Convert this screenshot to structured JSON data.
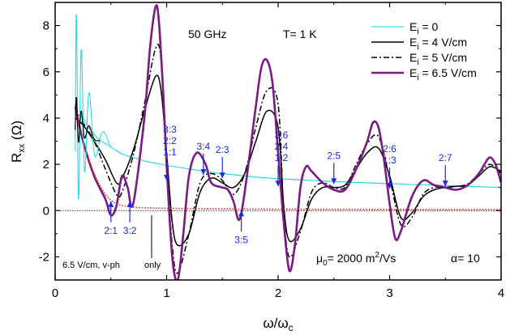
{
  "chart_data": {
    "type": "line",
    "xlabel": "ω/ω",
    "xlabel_sub": "c",
    "ylabel": "R",
    "ylabel_sub": "xx",
    "ylabel_unit": " (Ω)",
    "xlim": [
      0,
      4
    ],
    "ylim": [
      -3,
      9
    ],
    "xticks": [
      0,
      1,
      2,
      3,
      4
    ],
    "xtick_labels": [
      "0",
      "1",
      "2",
      "3",
      "4"
    ],
    "yticks": [
      -2,
      0,
      2,
      4,
      6,
      8
    ],
    "ytick_labels": [
      "-2",
      "0",
      "2",
      "4",
      "6",
      "8"
    ],
    "grid": false,
    "legend_position": "top-right",
    "annotations": {
      "freq": "50 GHz",
      "temp": "T= 1 K",
      "mu_prefix": "μ",
      "mu_sub": "0",
      "mu_value": "= 2000 m",
      "mu_sup": "2",
      "mu_unit": "/Vs",
      "alpha": "α= 10",
      "vph_note": "6.5 V/cm, v-ph",
      "only_note": "only"
    },
    "arrows": [
      {
        "label_lines": [
          "3:3",
          "2:2",
          "1:1"
        ],
        "x": 1.0,
        "y": 1.3
      },
      {
        "label_lines": [
          "3:4"
        ],
        "x": 1.33,
        "y": 1.55
      },
      {
        "label_lines": [
          "2:3"
        ],
        "x": 1.5,
        "y": 1.4
      },
      {
        "label_lines": [
          "3:6",
          "2:4",
          "1:2"
        ],
        "x": 2.0,
        "y": 1.05
      },
      {
        "label_lines": [
          "2:5"
        ],
        "x": 2.5,
        "y": 1.15
      },
      {
        "label_lines": [
          "2:6",
          "1:3"
        ],
        "x": 3.0,
        "y": 0.95
      },
      {
        "label_lines": [
          "2:7"
        ],
        "x": 3.5,
        "y": 1.05
      },
      {
        "label_lines": [
          "2:1"
        ],
        "x": 0.5,
        "y": 0.4
      },
      {
        "label_lines": [
          "3:2"
        ],
        "x": 0.67,
        "y": 0.4
      },
      {
        "label_lines": [
          "3:5"
        ],
        "x": 1.67,
        "y": 0.0
      }
    ],
    "series": [
      {
        "name": "E",
        "name_sub": "i",
        "name_rest": " = 0",
        "color": "#1ad8e0",
        "dash": "solid",
        "width": 1.1,
        "x": [
          0.18,
          0.25,
          0.3,
          0.35,
          0.4,
          0.5,
          0.6,
          0.7,
          0.8,
          0.9,
          1.0,
          1.2,
          1.4,
          1.6,
          1.8,
          2.0,
          2.4,
          2.8,
          3.2,
          3.6,
          4.0
        ],
        "y": [
          4.2,
          4.0,
          3.6,
          3.3,
          3.05,
          2.75,
          2.45,
          2.3,
          2.15,
          2.05,
          1.95,
          1.8,
          1.65,
          1.55,
          1.45,
          1.38,
          1.28,
          1.2,
          1.13,
          1.07,
          1.0
        ]
      },
      {
        "name": "E",
        "name_sub": "i",
        "name_rest": " = 4 V/cm",
        "color": "#000000",
        "dash": "solid",
        "width": 1.5,
        "x": [
          0.18,
          0.25,
          0.35,
          0.45,
          0.55,
          0.6,
          0.7,
          0.8,
          0.9,
          0.95,
          1.0,
          1.05,
          1.1,
          1.2,
          1.3,
          1.4,
          1.5,
          1.6,
          1.7,
          1.8,
          1.9,
          2.0,
          2.05,
          2.1,
          2.2,
          2.3,
          2.4,
          2.5,
          2.6,
          2.7,
          2.8,
          2.9,
          3.0,
          3.1,
          3.2,
          3.3,
          3.4,
          3.5,
          3.6,
          3.7,
          3.8,
          3.9,
          4.0
        ],
        "y": [
          4.0,
          3.7,
          3.0,
          2.2,
          1.2,
          1.4,
          2.6,
          4.3,
          5.8,
          5.2,
          2.5,
          -0.5,
          -1.5,
          -1.0,
          0.8,
          1.4,
          1.2,
          1.0,
          1.6,
          3.0,
          4.3,
          3.6,
          0.2,
          -1.3,
          -0.8,
          0.5,
          1.0,
          1.0,
          1.1,
          1.8,
          2.5,
          2.7,
          1.5,
          -0.3,
          -0.1,
          0.6,
          0.9,
          1.0,
          1.05,
          1.1,
          1.5,
          1.9,
          1.7
        ]
      },
      {
        "name": "E",
        "name_sub": "i",
        "name_rest": " = 5 V/cm",
        "color": "#000000",
        "dash": "dashdot",
        "width": 1.5,
        "x": [
          0.18,
          0.25,
          0.35,
          0.45,
          0.55,
          0.6,
          0.7,
          0.8,
          0.9,
          0.95,
          1.0,
          1.05,
          1.1,
          1.2,
          1.3,
          1.4,
          1.5,
          1.6,
          1.7,
          1.8,
          1.9,
          2.0,
          2.05,
          2.1,
          2.2,
          2.3,
          2.4,
          2.5,
          2.6,
          2.7,
          2.8,
          2.9,
          3.0,
          3.1,
          3.2,
          3.3,
          3.4,
          3.5,
          3.6,
          3.7,
          3.8,
          3.9,
          4.0
        ],
        "y": [
          4.3,
          3.8,
          3.0,
          1.8,
          0.7,
          0.8,
          2.4,
          4.6,
          7.0,
          6.5,
          2.2,
          -1.5,
          -2.7,
          -1.0,
          1.2,
          1.6,
          1.3,
          0.7,
          1.6,
          3.6,
          5.2,
          4.6,
          0.0,
          -2.0,
          -0.9,
          0.8,
          1.2,
          1.0,
          1.0,
          2.0,
          2.9,
          3.2,
          1.4,
          -0.6,
          -0.3,
          0.7,
          1.0,
          1.0,
          1.05,
          1.15,
          1.6,
          2.0,
          1.6
        ]
      },
      {
        "name": "E",
        "name_sub": "i",
        "name_rest": " = 6.5 V/cm",
        "color": "#7a1a82",
        "dash": "solid",
        "width": 2.6,
        "x": [
          0.18,
          0.25,
          0.35,
          0.45,
          0.5,
          0.55,
          0.6,
          0.65,
          0.7,
          0.8,
          0.85,
          0.9,
          0.93,
          0.97,
          1.0,
          1.05,
          1.1,
          1.15,
          1.2,
          1.27,
          1.35,
          1.4,
          1.5,
          1.55,
          1.6,
          1.65,
          1.7,
          1.8,
          1.85,
          1.9,
          1.95,
          2.0,
          2.05,
          2.1,
          2.15,
          2.2,
          2.25,
          2.3,
          2.4,
          2.5,
          2.6,
          2.7,
          2.8,
          2.85,
          2.9,
          2.95,
          3.0,
          3.05,
          3.1,
          3.2,
          3.3,
          3.4,
          3.5,
          3.6,
          3.7,
          3.8,
          3.85,
          3.9,
          3.95,
          4.0
        ],
        "y": [
          4.5,
          3.0,
          1.5,
          0.5,
          -0.2,
          0.2,
          1.5,
          1.0,
          0.3,
          4.0,
          7.0,
          8.8,
          8.2,
          5.0,
          2.0,
          -2.0,
          -3.0,
          -1.0,
          1.5,
          2.5,
          2.0,
          1.2,
          1.0,
          0.9,
          0.4,
          -0.4,
          0.8,
          4.5,
          6.2,
          6.5,
          5.5,
          2.5,
          -0.5,
          -2.6,
          -1.5,
          1.0,
          1.9,
          1.7,
          1.2,
          0.9,
          0.9,
          1.8,
          3.0,
          3.8,
          3.6,
          2.2,
          0.3,
          -1.2,
          -0.9,
          0.6,
          1.3,
          1.1,
          1.0,
          0.9,
          1.1,
          1.6,
          2.0,
          2.3,
          2.0,
          1.2
        ]
      },
      {
        "name": "",
        "color": "#e02020",
        "dash": "dotted",
        "width": 1.6,
        "x": [
          0.18,
          0.22,
          0.26,
          0.3,
          0.35,
          0.4,
          0.45,
          0.5,
          0.55,
          0.6,
          0.7,
          0.8,
          1.0,
          1.4,
          2.0,
          3.0,
          4.0
        ],
        "y": [
          4.6,
          3.6,
          2.8,
          2.2,
          1.6,
          1.1,
          0.7,
          0.45,
          0.3,
          0.22,
          0.15,
          0.12,
          0.1,
          0.08,
          0.06,
          0.05,
          0.04
        ]
      }
    ]
  }
}
